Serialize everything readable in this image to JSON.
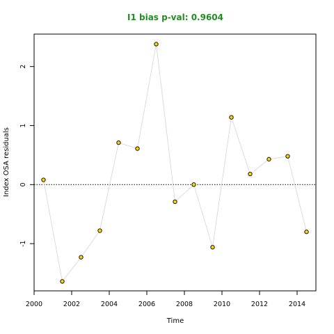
{
  "chart_data": {
    "type": "scatter",
    "title": "I1 bias p-val: 0.9604",
    "xlabel": "Time",
    "ylabel": "Index OSA residuals",
    "xlim": [
      2000,
      2015
    ],
    "ylim": [
      -1.8,
      2.55
    ],
    "x_ticks": [
      "2000",
      "2002",
      "2004",
      "2006",
      "2008",
      "2010",
      "2012",
      "2014"
    ],
    "y_ticks": [
      "-1",
      "0",
      "1",
      "2"
    ],
    "reference_line": 0,
    "grid": false,
    "series": [
      {
        "x": [
          2000.5,
          2001.5,
          2002.5,
          2003.5,
          2004.5,
          2005.5,
          2006.5,
          2007.5,
          2008.5,
          2009.5,
          2010.5,
          2011.5,
          2012.5,
          2013.5,
          2014.5
        ],
        "values": [
          0.08,
          -1.64,
          -1.23,
          -0.78,
          0.71,
          0.61,
          2.38,
          -0.29,
          0.0,
          -1.06,
          1.14,
          0.18,
          0.43,
          0.48,
          -0.8
        ]
      }
    ],
    "colors": {
      "title": "#228b22",
      "point_fill": "#ffd700",
      "point_stroke": "#000000",
      "line": "#d3d3d3",
      "reference": "#000000"
    }
  }
}
